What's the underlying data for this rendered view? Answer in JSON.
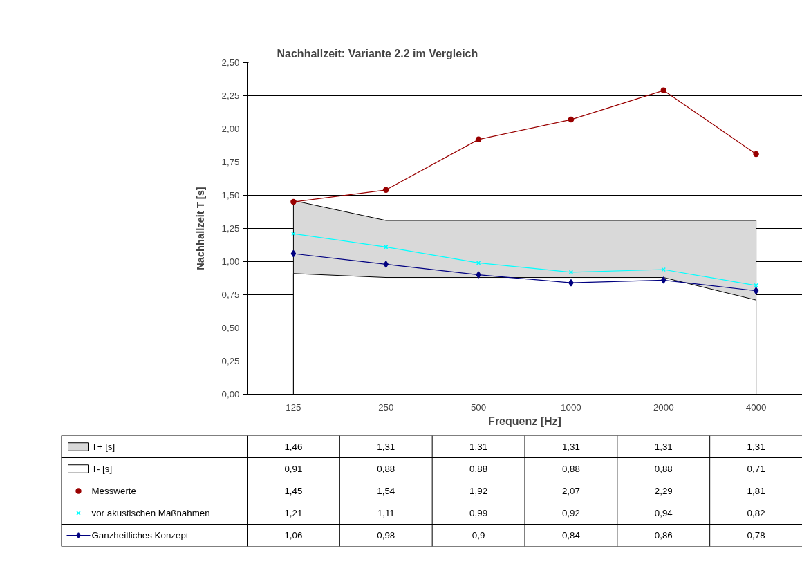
{
  "chart_data": {
    "type": "line",
    "title": "Nachhallzeit: Variante 2.2 im Vergleich",
    "xlabel": "Frequenz [Hz]",
    "ylabel": "Nachhallzeit T [s]",
    "categories": [
      "125",
      "250",
      "500",
      "1000",
      "2000",
      "4000"
    ],
    "series": [
      {
        "name": "T+ [s]",
        "type": "area",
        "color": "#d9d9d9",
        "values": [
          1.46,
          1.31,
          1.31,
          1.31,
          1.31,
          1.31
        ],
        "value_labels": [
          "1,46",
          "1,31",
          "1,31",
          "1,31",
          "1,31",
          "1,31"
        ]
      },
      {
        "name": "T- [s]",
        "type": "area",
        "color": "#ffffff",
        "values": [
          0.91,
          0.88,
          0.88,
          0.88,
          0.88,
          0.71
        ],
        "value_labels": [
          "0,91",
          "0,88",
          "0,88",
          "0,88",
          "0,88",
          "0,71"
        ]
      },
      {
        "name": "Messwerte",
        "color": "#990000",
        "marker": "circle",
        "values": [
          1.45,
          1.54,
          1.92,
          2.07,
          2.29,
          1.81
        ],
        "value_labels": [
          "1,45",
          "1,54",
          "1,92",
          "2,07",
          "2,29",
          "1,81"
        ]
      },
      {
        "name": "vor akustischen Maßnahmen",
        "color": "#00ffff",
        "marker": "cross",
        "values": [
          1.21,
          1.11,
          0.99,
          0.92,
          0.94,
          0.82
        ],
        "value_labels": [
          "1,21",
          "1,11",
          "0,99",
          "0,92",
          "0,94",
          "0,82"
        ]
      },
      {
        "name": "Ganzheitliches Konzept",
        "color": "#000080",
        "marker": "diamond",
        "values": [
          1.06,
          0.98,
          0.9,
          0.84,
          0.86,
          0.78
        ],
        "value_labels": [
          "1,06",
          "0,98",
          "0,9",
          "0,84",
          "0,86",
          "0,78"
        ]
      }
    ],
    "ylim": [
      0,
      2.5
    ],
    "yticks": [
      {
        "value": 0,
        "label": "0,00"
      },
      {
        "value": 0.25,
        "label": "0,25"
      },
      {
        "value": 0.5,
        "label": "0,50"
      },
      {
        "value": 0.75,
        "label": "0,75"
      },
      {
        "value": 1,
        "label": "1,00"
      },
      {
        "value": 1.25,
        "label": "1,25"
      },
      {
        "value": 1.5,
        "label": "1,50"
      },
      {
        "value": 1.75,
        "label": "1,75"
      },
      {
        "value": 2,
        "label": "2,00"
      },
      {
        "value": 2.25,
        "label": "2,25"
      },
      {
        "value": 2.5,
        "label": "2,50"
      }
    ],
    "grid": "y",
    "legend": "bottom left",
    "line_style": "solid"
  }
}
